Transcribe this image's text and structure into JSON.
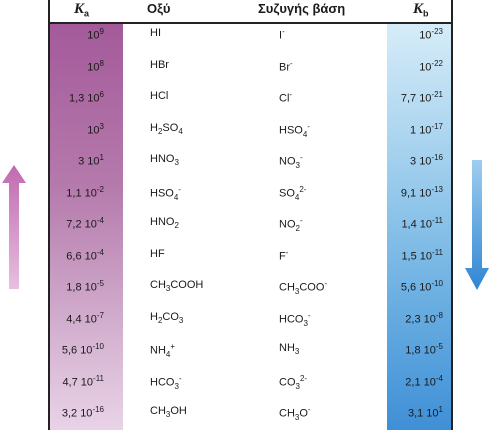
{
  "header": {
    "ka_label": "K",
    "ka_sub": "a",
    "acid_label": "Οξύ",
    "base_label": "Συζυγής βάση",
    "kb_label": "K",
    "kb_sub": "b"
  },
  "rows": [
    {
      "ka": "10",
      "ka_exp": "9",
      "acid": "HI",
      "base": "I",
      "base_sup": "-",
      "kb": "10",
      "kb_exp": "-23"
    },
    {
      "ka": "10",
      "ka_exp": "8",
      "acid": "HBr",
      "base": "Br",
      "base_sup": "-",
      "kb": "10",
      "kb_exp": "-22"
    },
    {
      "ka": "1,3 10",
      "ka_exp": "6",
      "acid": "HCl",
      "base": "Cl",
      "base_sup": "-",
      "kb": "7,7 10",
      "kb_exp": "-21"
    },
    {
      "ka": "10",
      "ka_exp": "3",
      "acid": "H2SO4",
      "base": "HSO4",
      "base_sup": "-",
      "kb": "1 10",
      "kb_exp": "-17"
    },
    {
      "ka": "3 10",
      "ka_exp": "1",
      "acid": "HNO3",
      "base": "NO3",
      "base_sup": "-",
      "kb": "3 10",
      "kb_exp": "-16"
    },
    {
      "ka": "1,1 10",
      "ka_exp": "-2",
      "acid": "HSO4-",
      "base": "SO4",
      "base_sup": "2-",
      "kb": "9,1 10",
      "kb_exp": "-13"
    },
    {
      "ka": "7,2 10",
      "ka_exp": "-4",
      "acid": "HNO2",
      "base": "NO2",
      "base_sup": "-",
      "kb": "1,4 10",
      "kb_exp": "-11"
    },
    {
      "ka": "6,6 10",
      "ka_exp": "-4",
      "acid": "HF",
      "base": "F",
      "base_sup": "-",
      "kb": "1,5 10",
      "kb_exp": "-11"
    },
    {
      "ka": "1,8 10",
      "ka_exp": "-5",
      "acid": "CH3COOH",
      "base": "CH3COO",
      "base_sup": "-",
      "kb": "5,6 10",
      "kb_exp": "-10"
    },
    {
      "ka": "4,4 10",
      "ka_exp": "-7",
      "acid": "H2CO3",
      "base": "HCO3",
      "base_sup": "-",
      "kb": "2,3 10",
      "kb_exp": "-8"
    },
    {
      "ka": "5,6 10",
      "ka_exp": "-10",
      "acid": "NH4+",
      "base": "NH3",
      "base_sup": "",
      "kb": "1,8 10",
      "kb_exp": "-5"
    },
    {
      "ka": "4,7 10",
      "ka_exp": "-11",
      "acid": "HCO3-",
      "base": "CO3",
      "base_sup": "2-",
      "kb": "2,1 10",
      "kb_exp": "-4"
    },
    {
      "ka": "3,2 10",
      "ka_exp": "-16",
      "acid": "CH3OH",
      "base": "CH3O",
      "base_sup": "-",
      "kb": "3,1 10",
      "kb_exp": "1"
    }
  ],
  "colors": {
    "ka_band": "#a45a9a",
    "kb_band": "#3f8fd6",
    "arrow_up": "#c77db9",
    "arrow_down": "#3c90d8"
  },
  "icons": {
    "left_arrow": "arrow-up-icon",
    "right_arrow": "arrow-down-icon"
  }
}
